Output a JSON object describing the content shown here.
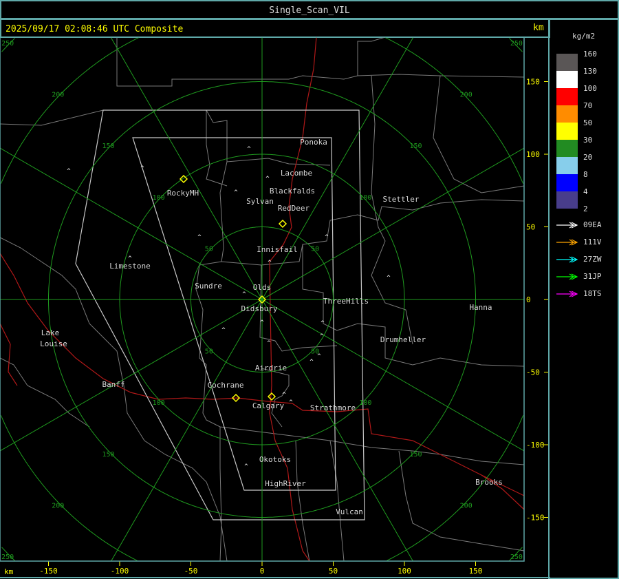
{
  "window": {
    "title": "Single_Scan_VIL"
  },
  "header": {
    "timestamp": "2025/09/17 02:08:46 UTC Composite",
    "unit_top": "km",
    "unit_bottom": "km"
  },
  "axes": {
    "x_ticks": [
      "-150",
      "-100",
      "-50",
      "0",
      "50",
      "100",
      "150"
    ],
    "y_ticks": [
      "150",
      "100",
      "50",
      "0",
      "-50",
      "-100",
      "-150"
    ],
    "ring_labels": [
      "50",
      "100",
      "150",
      "200",
      "250"
    ]
  },
  "towns": [
    "Ponoka",
    "Lacombe",
    "Blackfalds",
    "Sylvan",
    "RedDeer",
    "RockyMH",
    "Stettler",
    "Innisfail",
    "Limestone",
    "Sundre",
    "Olds",
    "Didsbury",
    "ThreeHills",
    "Hanna",
    "Drumheller",
    "Lake",
    "Louise",
    "Airdrie",
    "Banff",
    "Cochrane",
    "Calgary",
    "Strathmore",
    "Okotoks",
    "HighRiver",
    "Brooks",
    "Vulcan"
  ],
  "colorbar": {
    "unit": "kg/m2",
    "levels": [
      {
        "label": "160",
        "color": "#5a5656"
      },
      {
        "label": "130",
        "color": "#ffffff"
      },
      {
        "label": "100",
        "color": "#ff0000"
      },
      {
        "label": "70",
        "color": "#ff8c00"
      },
      {
        "label": "50",
        "color": "#ffff00"
      },
      {
        "label": "30",
        "color": "#228b22"
      },
      {
        "label": "20",
        "color": "#87ceeb"
      },
      {
        "label": "8",
        "color": "#0000ff"
      },
      {
        "label": "4",
        "color": "#483d8b"
      },
      {
        "label": "2",
        "color": ""
      }
    ]
  },
  "tracks": [
    {
      "label": "09EA",
      "color": "#ffffff"
    },
    {
      "label": "111V",
      "color": "#ffa500"
    },
    {
      "label": "27ZW",
      "color": "#00ffff"
    },
    {
      "label": "31JP",
      "color": "#00ff00"
    },
    {
      "label": "18TS",
      "color": "#ff00ff"
    }
  ],
  "colors": {
    "accent": "#ffff00",
    "rings": "#1f9b1f",
    "frame": "#5fa8a8",
    "boundaries": "#7a7a7a",
    "highways": "#b01818"
  }
}
